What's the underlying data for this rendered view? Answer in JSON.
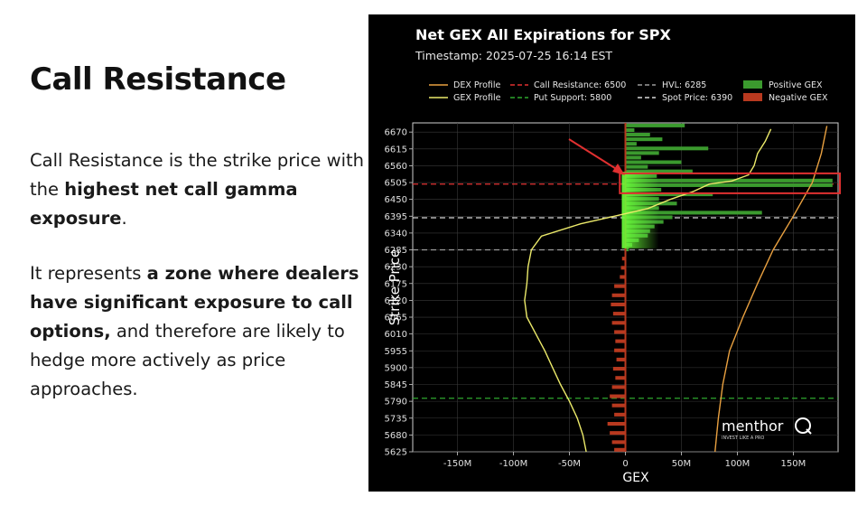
{
  "slide": {
    "title": "Call Resistance",
    "para1": {
      "t1": "Call Resistance is the strike price with the ",
      "b1": "highest net call gamma exposure",
      "t2": "."
    },
    "para2": {
      "t1": "It represents ",
      "b1": "a zone where dealers have significant exposure to call options,",
      "t2": " and therefore are likely to hedge more actively as price approaches."
    }
  },
  "chart_data": {
    "type": "bar",
    "orientation": "horizontal",
    "title": "Net GEX All Expirations for SPX",
    "subtitle": "Timestamp: 2025-07-25 16:14 EST",
    "xlabel": "GEX",
    "ylabel": "Strike Price",
    "xlim": [
      -190,
      190
    ],
    "ylim": [
      5625,
      6700
    ],
    "x_ticks": [
      -150,
      -100,
      -50,
      0,
      50,
      100,
      150
    ],
    "x_tick_labels": [
      "-150M",
      "-100M",
      "-50M",
      "0",
      "50M",
      "100M",
      "150M"
    ],
    "y_ticks": [
      5625,
      5680,
      5735,
      5790,
      5845,
      5900,
      5955,
      6010,
      6065,
      6120,
      6175,
      6230,
      6285,
      6340,
      6395,
      6450,
      6505,
      6560,
      6615,
      6670
    ],
    "grid": true,
    "legend_placement": "top",
    "legend": {
      "dex": "DEX Profile",
      "gex": "GEX Profile",
      "call_res": "Call Resistance: 6500",
      "put_sup": "Put Support: 5800",
      "hvl": "HVL: 6285",
      "spot": "Spot Price: 6390",
      "pos": "Positive GEX",
      "neg": "Negative GEX"
    },
    "levels": {
      "call_resistance": 6500,
      "put_support": 5800,
      "hvl": 6285,
      "spot_price": 6390
    },
    "colors": {
      "positive": "#3b9a2e",
      "positive_bright": "#6cff3a",
      "negative": "#b8391f",
      "dex": "#e8a040",
      "gex": "#ecea6a",
      "call_resistance": "#e03030",
      "put_support": "#2ea82e",
      "hvl": "#9a9a9a",
      "spot": "#d8d8d8",
      "highlight": "#e03030",
      "arrow": "#e03030"
    },
    "positive_bars": [
      {
        "strike": 6690,
        "value": 53
      },
      {
        "strike": 6675,
        "value": 8
      },
      {
        "strike": 6660,
        "value": 22
      },
      {
        "strike": 6645,
        "value": 33
      },
      {
        "strike": 6630,
        "value": 10
      },
      {
        "strike": 6615,
        "value": 74
      },
      {
        "strike": 6600,
        "value": 30
      },
      {
        "strike": 6585,
        "value": 14
      },
      {
        "strike": 6570,
        "value": 50
      },
      {
        "strike": 6555,
        "value": 20
      },
      {
        "strike": 6540,
        "value": 60
      },
      {
        "strike": 6525,
        "value": 28
      },
      {
        "strike": 6510,
        "value": 185
      },
      {
        "strike": 6495,
        "value": 185
      },
      {
        "strike": 6480,
        "value": 32
      },
      {
        "strike": 6465,
        "value": 78
      },
      {
        "strike": 6450,
        "value": 30
      },
      {
        "strike": 6435,
        "value": 46
      },
      {
        "strike": 6420,
        "value": 30
      },
      {
        "strike": 6405,
        "value": 122
      },
      {
        "strike": 6390,
        "value": 42
      },
      {
        "strike": 6375,
        "value": 34
      },
      {
        "strike": 6360,
        "value": 26
      },
      {
        "strike": 6345,
        "value": 22
      },
      {
        "strike": 6330,
        "value": 20
      },
      {
        "strike": 6315,
        "value": 12
      },
      {
        "strike": 6300,
        "value": 6
      },
      {
        "strike": 6285,
        "value": 3
      }
    ],
    "negative_bars": [
      {
        "strike": 6255,
        "value": -3
      },
      {
        "strike": 6225,
        "value": -4
      },
      {
        "strike": 6195,
        "value": -5
      },
      {
        "strike": 6165,
        "value": -10
      },
      {
        "strike": 6135,
        "value": -12
      },
      {
        "strike": 6105,
        "value": -13
      },
      {
        "strike": 6075,
        "value": -11
      },
      {
        "strike": 6045,
        "value": -12
      },
      {
        "strike": 6015,
        "value": -10
      },
      {
        "strike": 5985,
        "value": -9
      },
      {
        "strike": 5955,
        "value": -10
      },
      {
        "strike": 5925,
        "value": -8
      },
      {
        "strike": 5895,
        "value": -11
      },
      {
        "strike": 5865,
        "value": -9
      },
      {
        "strike": 5835,
        "value": -12
      },
      {
        "strike": 5805,
        "value": -14
      },
      {
        "strike": 5775,
        "value": -12
      },
      {
        "strike": 5745,
        "value": -10
      },
      {
        "strike": 5715,
        "value": -16
      },
      {
        "strike": 5685,
        "value": -14
      },
      {
        "strike": 5655,
        "value": -12
      },
      {
        "strike": 5630,
        "value": -10
      }
    ],
    "gex_profile": [
      {
        "x": -35,
        "y": 5625
      },
      {
        "x": -38,
        "y": 5680
      },
      {
        "x": -43,
        "y": 5735
      },
      {
        "x": -50,
        "y": 5790
      },
      {
        "x": -58,
        "y": 5845
      },
      {
        "x": -65,
        "y": 5900
      },
      {
        "x": -72,
        "y": 5955
      },
      {
        "x": -80,
        "y": 6010
      },
      {
        "x": -88,
        "y": 6065
      },
      {
        "x": -90,
        "y": 6120
      },
      {
        "x": -88,
        "y": 6175
      },
      {
        "x": -87,
        "y": 6230
      },
      {
        "x": -84,
        "y": 6285
      },
      {
        "x": -75,
        "y": 6330
      },
      {
        "x": -40,
        "y": 6370
      },
      {
        "x": -10,
        "y": 6395
      },
      {
        "x": 20,
        "y": 6420
      },
      {
        "x": 40,
        "y": 6450
      },
      {
        "x": 60,
        "y": 6475
      },
      {
        "x": 75,
        "y": 6500
      },
      {
        "x": 95,
        "y": 6510
      },
      {
        "x": 110,
        "y": 6530
      },
      {
        "x": 115,
        "y": 6560
      },
      {
        "x": 118,
        "y": 6600
      },
      {
        "x": 125,
        "y": 6640
      },
      {
        "x": 130,
        "y": 6680
      }
    ],
    "dex_profile": [
      {
        "x": 80,
        "y": 5625
      },
      {
        "x": 83,
        "y": 5735
      },
      {
        "x": 87,
        "y": 5845
      },
      {
        "x": 93,
        "y": 5955
      },
      {
        "x": 105,
        "y": 6065
      },
      {
        "x": 118,
        "y": 6175
      },
      {
        "x": 132,
        "y": 6285
      },
      {
        "x": 150,
        "y": 6395
      },
      {
        "x": 167,
        "y": 6505
      },
      {
        "x": 175,
        "y": 6600
      },
      {
        "x": 180,
        "y": 6690
      }
    ],
    "highlight_band": {
      "from": 6470,
      "to": 6535
    },
    "watermark": {
      "brand": "menthor",
      "tagline": "INVEST LIKE A PRO"
    }
  }
}
